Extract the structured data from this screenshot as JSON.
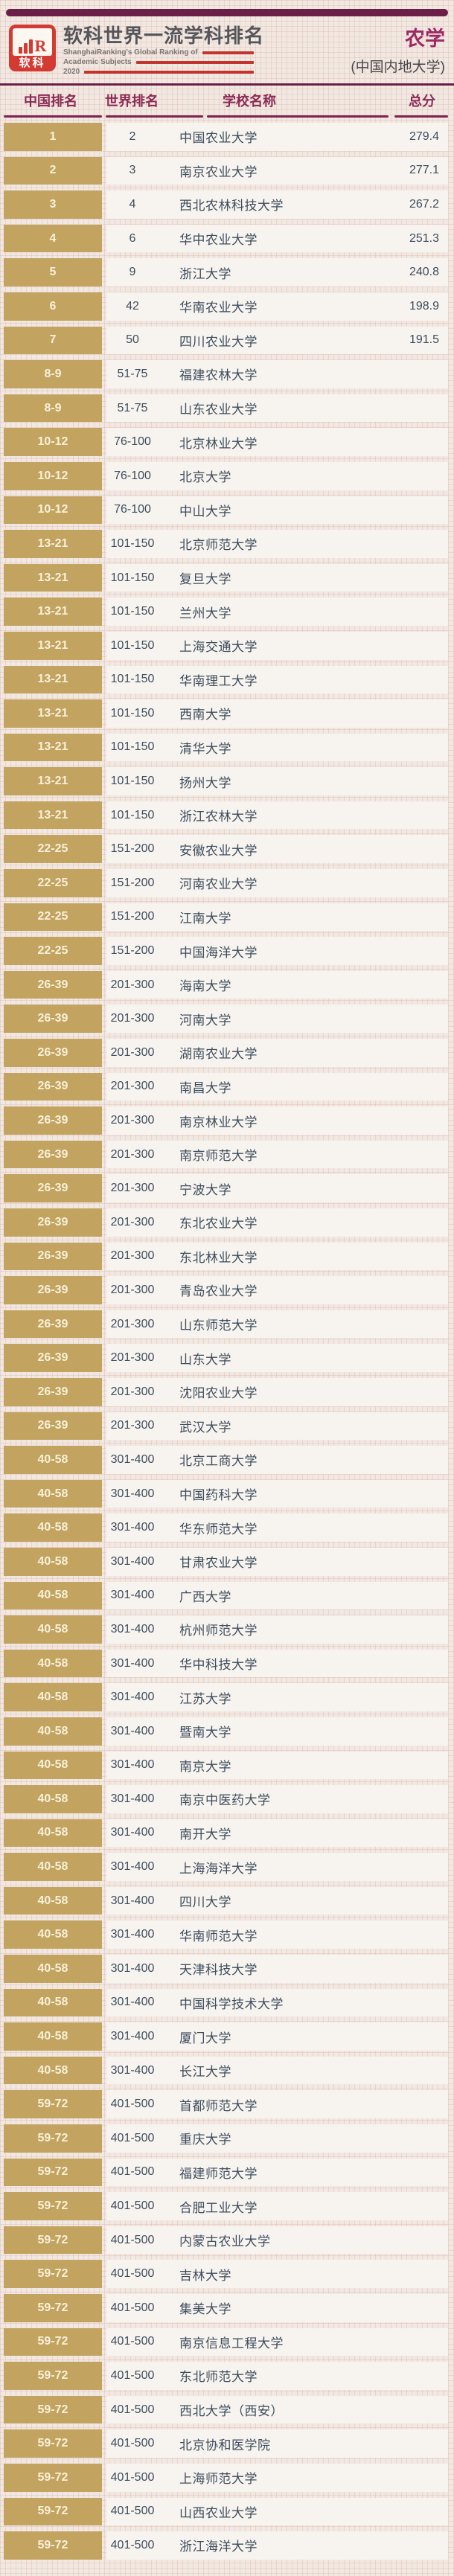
{
  "header": {
    "logo": {
      "brand": "软科",
      "monogram": "R"
    },
    "title": "软科世界一流学科排名",
    "subtitle_lines": [
      "ShanghaiRanking's Global Ranking of",
      "Academic Subjects",
      "2020"
    ],
    "subject": "农学",
    "scope": "(中国内地大学)"
  },
  "table": {
    "columns": [
      "中国排名",
      "世界排名",
      "学校名称",
      "总分"
    ],
    "rows": [
      {
        "cn": "1",
        "world": "2",
        "school": "中国农业大学",
        "score": "279.4"
      },
      {
        "cn": "2",
        "world": "3",
        "school": "南京农业大学",
        "score": "277.1"
      },
      {
        "cn": "3",
        "world": "4",
        "school": "西北农林科技大学",
        "score": "267.2"
      },
      {
        "cn": "4",
        "world": "6",
        "school": "华中农业大学",
        "score": "251.3"
      },
      {
        "cn": "5",
        "world": "9",
        "school": "浙江大学",
        "score": "240.8"
      },
      {
        "cn": "6",
        "world": "42",
        "school": "华南农业大学",
        "score": "198.9"
      },
      {
        "cn": "7",
        "world": "50",
        "school": "四川农业大学",
        "score": "191.5"
      },
      {
        "cn": "8-9",
        "world": "51-75",
        "school": "福建农林大学",
        "score": ""
      },
      {
        "cn": "8-9",
        "world": "51-75",
        "school": "山东农业大学",
        "score": ""
      },
      {
        "cn": "10-12",
        "world": "76-100",
        "school": "北京林业大学",
        "score": ""
      },
      {
        "cn": "10-12",
        "world": "76-100",
        "school": "北京大学",
        "score": ""
      },
      {
        "cn": "10-12",
        "world": "76-100",
        "school": "中山大学",
        "score": ""
      },
      {
        "cn": "13-21",
        "world": "101-150",
        "school": "北京师范大学",
        "score": ""
      },
      {
        "cn": "13-21",
        "world": "101-150",
        "school": "复旦大学",
        "score": ""
      },
      {
        "cn": "13-21",
        "world": "101-150",
        "school": "兰州大学",
        "score": ""
      },
      {
        "cn": "13-21",
        "world": "101-150",
        "school": "上海交通大学",
        "score": ""
      },
      {
        "cn": "13-21",
        "world": "101-150",
        "school": "华南理工大学",
        "score": ""
      },
      {
        "cn": "13-21",
        "world": "101-150",
        "school": "西南大学",
        "score": ""
      },
      {
        "cn": "13-21",
        "world": "101-150",
        "school": "清华大学",
        "score": ""
      },
      {
        "cn": "13-21",
        "world": "101-150",
        "school": "扬州大学",
        "score": ""
      },
      {
        "cn": "13-21",
        "world": "101-150",
        "school": "浙江农林大学",
        "score": ""
      },
      {
        "cn": "22-25",
        "world": "151-200",
        "school": "安徽农业大学",
        "score": ""
      },
      {
        "cn": "22-25",
        "world": "151-200",
        "school": "河南农业大学",
        "score": ""
      },
      {
        "cn": "22-25",
        "world": "151-200",
        "school": "江南大学",
        "score": ""
      },
      {
        "cn": "22-25",
        "world": "151-200",
        "school": "中国海洋大学",
        "score": ""
      },
      {
        "cn": "26-39",
        "world": "201-300",
        "school": "海南大学",
        "score": ""
      },
      {
        "cn": "26-39",
        "world": "201-300",
        "school": "河南大学",
        "score": ""
      },
      {
        "cn": "26-39",
        "world": "201-300",
        "school": "湖南农业大学",
        "score": ""
      },
      {
        "cn": "26-39",
        "world": "201-300",
        "school": "南昌大学",
        "score": ""
      },
      {
        "cn": "26-39",
        "world": "201-300",
        "school": "南京林业大学",
        "score": ""
      },
      {
        "cn": "26-39",
        "world": "201-300",
        "school": "南京师范大学",
        "score": ""
      },
      {
        "cn": "26-39",
        "world": "201-300",
        "school": "宁波大学",
        "score": ""
      },
      {
        "cn": "26-39",
        "world": "201-300",
        "school": "东北农业大学",
        "score": ""
      },
      {
        "cn": "26-39",
        "world": "201-300",
        "school": "东北林业大学",
        "score": ""
      },
      {
        "cn": "26-39",
        "world": "201-300",
        "school": "青岛农业大学",
        "score": ""
      },
      {
        "cn": "26-39",
        "world": "201-300",
        "school": "山东师范大学",
        "score": ""
      },
      {
        "cn": "26-39",
        "world": "201-300",
        "school": "山东大学",
        "score": ""
      },
      {
        "cn": "26-39",
        "world": "201-300",
        "school": "沈阳农业大学",
        "score": ""
      },
      {
        "cn": "26-39",
        "world": "201-300",
        "school": "武汉大学",
        "score": ""
      },
      {
        "cn": "40-58",
        "world": "301-400",
        "school": "北京工商大学",
        "score": ""
      },
      {
        "cn": "40-58",
        "world": "301-400",
        "school": "中国药科大学",
        "score": ""
      },
      {
        "cn": "40-58",
        "world": "301-400",
        "school": "华东师范大学",
        "score": ""
      },
      {
        "cn": "40-58",
        "world": "301-400",
        "school": "甘肃农业大学",
        "score": ""
      },
      {
        "cn": "40-58",
        "world": "301-400",
        "school": "广西大学",
        "score": ""
      },
      {
        "cn": "40-58",
        "world": "301-400",
        "school": "杭州师范大学",
        "score": ""
      },
      {
        "cn": "40-58",
        "world": "301-400",
        "school": "华中科技大学",
        "score": ""
      },
      {
        "cn": "40-58",
        "world": "301-400",
        "school": "江苏大学",
        "score": ""
      },
      {
        "cn": "40-58",
        "world": "301-400",
        "school": "暨南大学",
        "score": ""
      },
      {
        "cn": "40-58",
        "world": "301-400",
        "school": "南京大学",
        "score": ""
      },
      {
        "cn": "40-58",
        "world": "301-400",
        "school": "南京中医药大学",
        "score": ""
      },
      {
        "cn": "40-58",
        "world": "301-400",
        "school": "南开大学",
        "score": ""
      },
      {
        "cn": "40-58",
        "world": "301-400",
        "school": "上海海洋大学",
        "score": ""
      },
      {
        "cn": "40-58",
        "world": "301-400",
        "school": "四川大学",
        "score": ""
      },
      {
        "cn": "40-58",
        "world": "301-400",
        "school": "华南师范大学",
        "score": ""
      },
      {
        "cn": "40-58",
        "world": "301-400",
        "school": "天津科技大学",
        "score": ""
      },
      {
        "cn": "40-58",
        "world": "301-400",
        "school": "中国科学技术大学",
        "score": ""
      },
      {
        "cn": "40-58",
        "world": "301-400",
        "school": "厦门大学",
        "score": ""
      },
      {
        "cn": "40-58",
        "world": "301-400",
        "school": "长江大学",
        "score": ""
      },
      {
        "cn": "59-72",
        "world": "401-500",
        "school": "首都师范大学",
        "score": ""
      },
      {
        "cn": "59-72",
        "world": "401-500",
        "school": "重庆大学",
        "score": ""
      },
      {
        "cn": "59-72",
        "world": "401-500",
        "school": "福建师范大学",
        "score": ""
      },
      {
        "cn": "59-72",
        "world": "401-500",
        "school": "合肥工业大学",
        "score": ""
      },
      {
        "cn": "59-72",
        "world": "401-500",
        "school": "内蒙古农业大学",
        "score": ""
      },
      {
        "cn": "59-72",
        "world": "401-500",
        "school": "吉林大学",
        "score": ""
      },
      {
        "cn": "59-72",
        "world": "401-500",
        "school": "集美大学",
        "score": ""
      },
      {
        "cn": "59-72",
        "world": "401-500",
        "school": "南京信息工程大学",
        "score": ""
      },
      {
        "cn": "59-72",
        "world": "401-500",
        "school": "东北师范大学",
        "score": ""
      },
      {
        "cn": "59-72",
        "world": "401-500",
        "school": "西北大学（西安）",
        "score": ""
      },
      {
        "cn": "59-72",
        "world": "401-500",
        "school": "北京协和医学院",
        "score": ""
      },
      {
        "cn": "59-72",
        "world": "401-500",
        "school": "上海师范大学",
        "score": ""
      },
      {
        "cn": "59-72",
        "world": "401-500",
        "school": "山西农业大学",
        "score": ""
      },
      {
        "cn": "59-72",
        "world": "401-500",
        "school": "浙江海洋大学",
        "score": ""
      }
    ]
  },
  "colors": {
    "accent_maroon": "#6b1f48",
    "table_header_text": "#8c2a55",
    "rank_cell_gold": "#c2a35f",
    "rank_cell_text": "#f8f0d9",
    "row_bg": "#f7f3ef",
    "row_text": "#3d4d5d",
    "subject_text": "#9e2a63",
    "logo_red": "#d23a32",
    "page_bg": "#f1e8e2"
  }
}
